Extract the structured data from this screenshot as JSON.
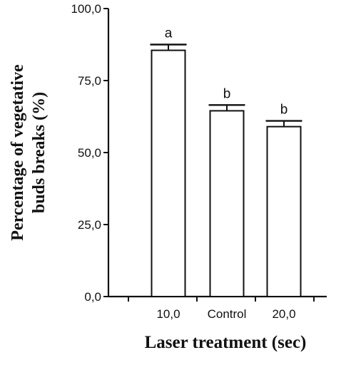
{
  "chart_data": {
    "type": "bar",
    "categories": [
      "10,0",
      "Control",
      "20,0"
    ],
    "values": [
      85.5,
      64.5,
      59.0
    ],
    "errors": [
      2.0,
      2.0,
      2.0
    ],
    "significance_labels": [
      "a",
      "b",
      "b"
    ],
    "xlabel": "Laser treatment (sec)",
    "ylabel_lines": [
      "Percentage of vegetative",
      "buds breaks (%)"
    ],
    "ylim": [
      0,
      100
    ],
    "yticks": [
      0,
      25,
      50,
      75,
      100
    ],
    "ytick_labels": [
      "0,0",
      "25,0",
      "50,0",
      "75,0",
      "100,0"
    ],
    "bar_fill": "#ffffff",
    "bar_stroke": "#111111",
    "grid": false,
    "legend": "none"
  }
}
